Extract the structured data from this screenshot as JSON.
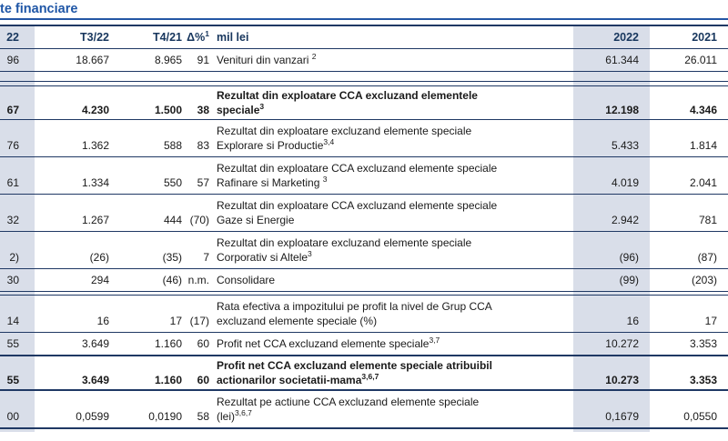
{
  "title": {
    "text": "te financiare"
  },
  "colors": {
    "rule_navy": "#1F3864",
    "title_blue": "#1F56A6",
    "column_shade": "#D9DEE9",
    "header_text": "#17365D",
    "body_text": "#1A1A1A"
  },
  "table": {
    "header": {
      "col1_fragment": "22",
      "t3_22": "T3/22",
      "t4_21": "T4/21",
      "delta": "Δ%",
      "delta_sup": "1",
      "unit": "mil lei",
      "y2022": "2022",
      "y2021": "2021"
    },
    "rows": [
      {
        "col1_fragment": "96",
        "t3_22": "18.667",
        "t4_21": "8.965",
        "delta": "91",
        "label": "Venituri din vanzari ",
        "label_sup": "2",
        "y2022": "61.344",
        "y2021": "26.011",
        "bold": false,
        "break_before": false,
        "sep_after": "single"
      },
      {
        "col1_fragment": "67",
        "t3_22": "4.230",
        "t4_21": "1.500",
        "delta": "38",
        "label": "Rezultat din exploatare CCA excluzand elementele speciale",
        "label_sup": "3",
        "y2022": "12.198",
        "y2021": "4.346",
        "bold": true,
        "break_before": true,
        "sep_after": "single"
      },
      {
        "col1_fragment": "76",
        "t3_22": "1.362",
        "t4_21": "588",
        "delta": "83",
        "label": "Rezultat din exploatare excluzand elemente speciale Explorare si Productie",
        "label_sup": "3,4",
        "y2022": "5.433",
        "y2021": "1.814",
        "bold": false,
        "break_before": false,
        "sep_after": "thin"
      },
      {
        "col1_fragment": "61",
        "t3_22": "1.334",
        "t4_21": "550",
        "delta": "57",
        "label": "Rezultat din exploatare CCA excluzand elemente speciale Rafinare si Marketing ",
        "label_sup": "3",
        "y2022": "4.019",
        "y2021": "2.041",
        "bold": false,
        "break_before": false,
        "sep_after": "thin"
      },
      {
        "col1_fragment": "32",
        "t3_22": "1.267",
        "t4_21": "444",
        "delta": "(70)",
        "label": "Rezultat din exploatare CCA excluzand elemente speciale Gaze si Energie",
        "label_sup": "",
        "y2022": "2.942",
        "y2021": "781",
        "bold": false,
        "break_before": false,
        "sep_after": "thin"
      },
      {
        "col1_fragment": "2)",
        "t3_22": "(26)",
        "t4_21": "(35)",
        "delta": "7",
        "label": "Rezultat din exploatare excluzand elemente speciale Corporativ si Altele",
        "label_sup": "3",
        "y2022": "(96)",
        "y2021": "(87)",
        "bold": false,
        "break_before": false,
        "sep_after": "thin"
      },
      {
        "col1_fragment": "30",
        "t3_22": "294",
        "t4_21": "(46)",
        "delta": "n.m.",
        "label": "Consolidare",
        "label_sup": "",
        "y2022": "(99)",
        "y2021": "(203)",
        "bold": false,
        "break_before": false,
        "sep_after": "double"
      },
      {
        "col1_fragment": "14",
        "t3_22": "16",
        "t4_21": "17",
        "delta": "(17)",
        "label": "Rata efectiva a impozitului pe profit la nivel de Grup CCA excluzand elemente speciale (%)",
        "label_sup": "",
        "y2022": "16",
        "y2021": "17",
        "bold": false,
        "break_before": false,
        "sep_after": "thin"
      },
      {
        "col1_fragment": "55",
        "t3_22": "3.649",
        "t4_21": "1.160",
        "delta": "60",
        "label": "Profit net CCA excluzand elemente speciale",
        "label_sup": "3,7",
        "y2022": "10.272",
        "y2021": "3.353",
        "bold": false,
        "break_before": false,
        "sep_after": "thick"
      },
      {
        "col1_fragment": "55",
        "t3_22": "3.649",
        "t4_21": "1.160",
        "delta": "60",
        "label": "Profit net CCA excluzand elemente speciale atribuibil actionarilor societatii-mama",
        "label_sup": "3,6,7",
        "y2022": "10.273",
        "y2021": "3.353",
        "bold": true,
        "break_before": false,
        "sep_after": "thick"
      },
      {
        "col1_fragment": "00",
        "t3_22": "0,0599",
        "t4_21": "0,0190",
        "delta": "58",
        "label": "Rezultat pe actiune CCA excluzand elemente speciale (lei)",
        "label_sup": "3,6,7",
        "y2022": "0,1679",
        "y2021": "0,0550",
        "bold": false,
        "break_before": false,
        "sep_after": "bottom"
      }
    ]
  }
}
